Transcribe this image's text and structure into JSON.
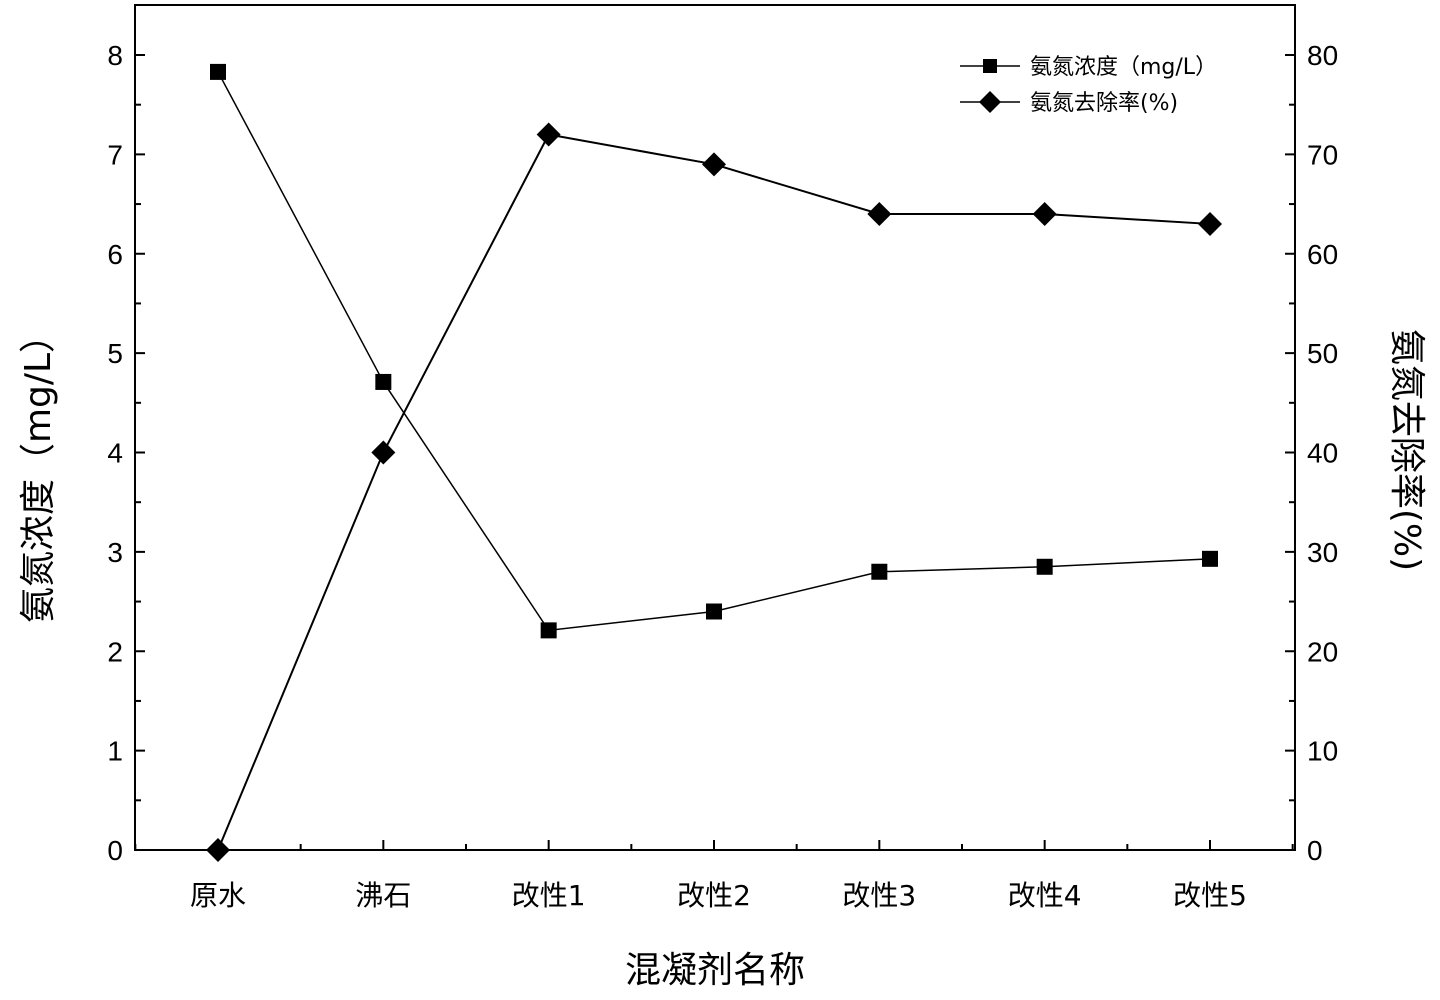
{
  "chart_data": {
    "type": "line",
    "categories": [
      "原水",
      "沸石",
      "改性1",
      "改性2",
      "改性3",
      "改性4",
      "改性5"
    ],
    "xlabel": "混凝剂名称",
    "ylabel": "氨氮浓度（mg/L）",
    "y2label": "氨氮去除率(%)",
    "ylim": [
      0,
      8
    ],
    "y2lim": [
      0,
      80
    ],
    "yticks": [
      "0",
      "1",
      "2",
      "3",
      "4",
      "5",
      "6",
      "7",
      "8"
    ],
    "y2ticks": [
      "0",
      "10",
      "20",
      "30",
      "40",
      "50",
      "60",
      "70",
      "80"
    ],
    "grid": false,
    "legend_position": "top-right",
    "series": [
      {
        "name": "氨氮浓度（mg/L）",
        "axis": "left",
        "marker": "square",
        "values": [
          7.83,
          4.71,
          2.21,
          2.4,
          2.8,
          2.85,
          2.93
        ]
      },
      {
        "name": "氨氮去除率(%)",
        "axis": "right",
        "marker": "diamond",
        "values": [
          0,
          40,
          72,
          69,
          64,
          64,
          63
        ]
      }
    ]
  }
}
